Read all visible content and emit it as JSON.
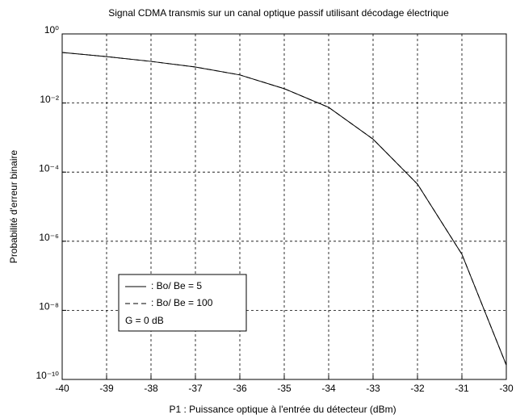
{
  "chart_data": {
    "type": "line",
    "title": "Signal CDMA transmis sur un canal optique passif utilisant décodage électrique",
    "xlabel": "P1 : Puissance optique à l'entrée du détecteur (dBm)",
    "ylabel": "Probabilité d'erreur binaire",
    "x": [
      -40,
      -39,
      -38,
      -37,
      -36,
      -35,
      -34,
      -33,
      -32,
      -31,
      -30
    ],
    "series": [
      {
        "name": ": Bo/ Be = 5",
        "color": "#000000",
        "dash": "solid",
        "values": [
          0.29,
          0.22,
          0.16,
          0.11,
          0.065,
          0.026,
          0.0075,
          0.0009,
          4.5e-05,
          4.2e-07,
          2.6e-10
        ]
      },
      {
        "name": ": Bo/ Be = 100",
        "color": "#000000",
        "dash": "dashed",
        "values": [
          0.29,
          0.22,
          0.16,
          0.11,
          0.065,
          0.026,
          0.0075,
          0.0009,
          4.5e-05,
          4.2e-07,
          2.6e-10
        ]
      }
    ],
    "legend_note": "G = 0 dB",
    "legend": "lower left",
    "xlim": [
      -40,
      -30
    ],
    "xticks": [
      -40,
      -39,
      -38,
      -37,
      -36,
      -35,
      -34,
      -33,
      -32,
      -31,
      -30
    ],
    "ylim": [
      1e-10,
      1
    ],
    "yticks": [
      {
        "value": 1e-10,
        "label": "10⁻¹⁰"
      },
      {
        "value": 1e-08,
        "label": "10⁻⁸"
      },
      {
        "value": 1e-06,
        "label": "10⁻⁶"
      },
      {
        "value": 0.0001,
        "label": "10⁻⁴"
      },
      {
        "value": 0.01,
        "label": "10⁻²"
      },
      {
        "value": 1,
        "label": "10⁰"
      }
    ],
    "yscale": "log",
    "grid": true
  }
}
